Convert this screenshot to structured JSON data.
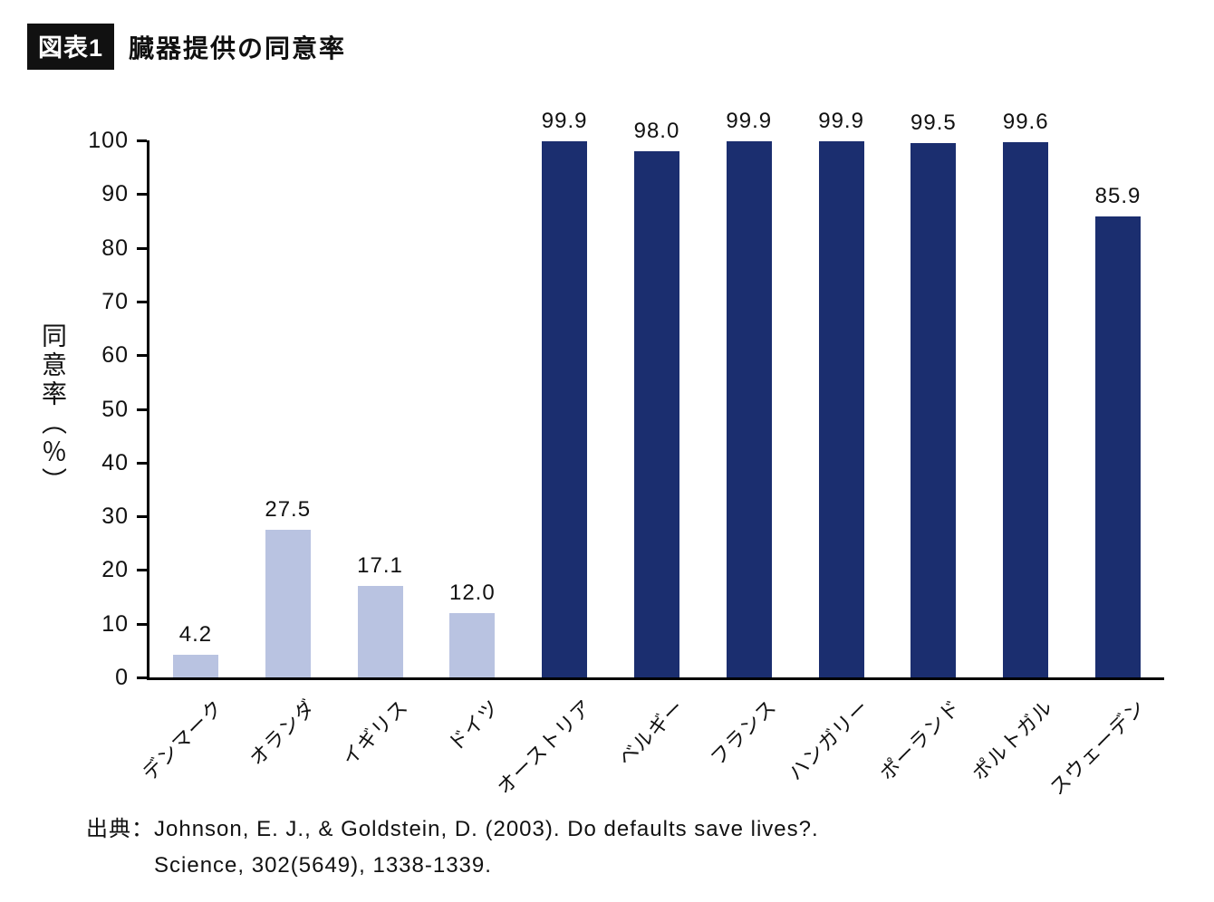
{
  "header": {
    "badge": "図表1",
    "title": "臓器提供の同意率"
  },
  "chart_data": {
    "type": "bar",
    "title": "臓器提供の同意率",
    "categories": [
      "デンマーク",
      "オランダ",
      "イギリス",
      "ドイツ",
      "オーストリア",
      "ベルギー",
      "フランス",
      "ハンガリー",
      "ポーランド",
      "ポルトガル",
      "スウェーデン"
    ],
    "values": [
      4.2,
      27.5,
      17.1,
      12.0,
      99.9,
      98.0,
      99.9,
      99.9,
      99.5,
      99.6,
      85.9
    ],
    "value_labels": [
      "4.2",
      "27.5",
      "17.1",
      "12.0",
      "99.9",
      "98.0",
      "99.9",
      "99.9",
      "99.5",
      "99.6",
      "85.9"
    ],
    "bar_styles": [
      "light",
      "light",
      "light",
      "light",
      "dark",
      "dark",
      "dark",
      "dark",
      "dark",
      "dark",
      "dark"
    ],
    "xlabel": "",
    "ylabel": "同意率（％）",
    "ylim": [
      0,
      100
    ],
    "yticks": [
      0,
      10,
      20,
      30,
      40,
      50,
      60,
      70,
      80,
      90,
      100
    ],
    "grid": false,
    "legend": "none"
  },
  "colors": {
    "bar_light": "#b9c3e1",
    "bar_dark": "#1b2e6f",
    "axis": "#000000",
    "badge_bg": "#111111",
    "badge_fg": "#ffffff"
  },
  "source": {
    "prefix": "出典：",
    "line1": "Johnson, E. J., & Goldstein, D. (2003). Do defaults save lives?.",
    "line2": "Science, 302(5649), 1338-1339."
  }
}
